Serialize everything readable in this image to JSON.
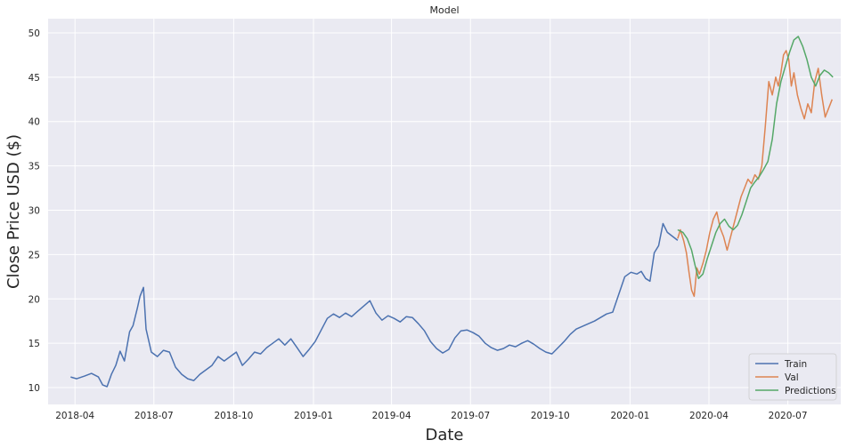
{
  "chart_data": {
    "type": "line",
    "title": "Model",
    "xlabel": "Date",
    "ylabel": "Close Price USD ($)",
    "xlim": [
      "2018-03-01",
      "2020-08-31"
    ],
    "ylim": [
      8.1,
      51.6
    ],
    "yticks": [
      10,
      15,
      20,
      25,
      30,
      35,
      40,
      45,
      50
    ],
    "xticks": [
      {
        "date": "2018-04-01",
        "label": "2018-04"
      },
      {
        "date": "2018-07-01",
        "label": "2018-07"
      },
      {
        "date": "2018-10-01",
        "label": "2018-10"
      },
      {
        "date": "2019-01-01",
        "label": "2019-01"
      },
      {
        "date": "2019-04-01",
        "label": "2019-04"
      },
      {
        "date": "2019-07-01",
        "label": "2019-07"
      },
      {
        "date": "2019-10-01",
        "label": "2019-10"
      },
      {
        "date": "2020-01-01",
        "label": "2020-01"
      },
      {
        "date": "2020-04-01",
        "label": "2020-04"
      },
      {
        "date": "2020-07-01",
        "label": "2020-07"
      }
    ],
    "grid": true,
    "background": "#EAEAF2",
    "legend_position": "bottom-right",
    "series": [
      {
        "name": "Train",
        "color": "#4C72B0",
        "x": [
          "2018-03-27",
          "2018-04-03",
          "2018-04-12",
          "2018-04-20",
          "2018-04-28",
          "2018-05-03",
          "2018-05-08",
          "2018-05-13",
          "2018-05-18",
          "2018-05-23",
          "2018-05-28",
          "2018-06-03",
          "2018-06-07",
          "2018-06-12",
          "2018-06-15",
          "2018-06-19",
          "2018-06-22",
          "2018-06-28",
          "2018-07-05",
          "2018-07-12",
          "2018-07-19",
          "2018-07-26",
          "2018-08-02",
          "2018-08-09",
          "2018-08-16",
          "2018-08-23",
          "2018-08-30",
          "2018-09-06",
          "2018-09-13",
          "2018-09-20",
          "2018-09-27",
          "2018-10-04",
          "2018-10-11",
          "2018-10-18",
          "2018-10-25",
          "2018-11-01",
          "2018-11-08",
          "2018-11-15",
          "2018-11-22",
          "2018-11-29",
          "2018-12-06",
          "2018-12-13",
          "2018-12-20",
          "2018-12-27",
          "2019-01-03",
          "2019-01-10",
          "2019-01-17",
          "2019-01-24",
          "2019-01-31",
          "2019-02-07",
          "2019-02-14",
          "2019-02-21",
          "2019-02-28",
          "2019-03-07",
          "2019-03-14",
          "2019-03-21",
          "2019-03-28",
          "2019-04-04",
          "2019-04-11",
          "2019-04-18",
          "2019-04-25",
          "2019-05-02",
          "2019-05-09",
          "2019-05-16",
          "2019-05-23",
          "2019-05-30",
          "2019-06-06",
          "2019-06-13",
          "2019-06-20",
          "2019-06-27",
          "2019-07-04",
          "2019-07-11",
          "2019-07-18",
          "2019-07-25",
          "2019-08-01",
          "2019-08-08",
          "2019-08-15",
          "2019-08-22",
          "2019-08-29",
          "2019-09-05",
          "2019-09-12",
          "2019-09-19",
          "2019-09-26",
          "2019-10-03",
          "2019-10-10",
          "2019-10-17",
          "2019-10-24",
          "2019-10-31",
          "2019-11-07",
          "2019-11-14",
          "2019-11-21",
          "2019-11-28",
          "2019-12-05",
          "2019-12-12",
          "2019-12-19",
          "2019-12-26",
          "2020-01-02",
          "2020-01-09",
          "2020-01-14",
          "2020-01-19",
          "2020-01-24",
          "2020-01-29",
          "2020-02-03",
          "2020-02-08",
          "2020-02-13",
          "2020-02-17",
          "2020-02-21",
          "2020-02-25"
        ],
        "y": [
          11.2,
          11.0,
          11.3,
          11.6,
          11.2,
          10.3,
          10.1,
          11.5,
          12.5,
          14.1,
          13.0,
          16.3,
          17.0,
          19.0,
          20.3,
          21.3,
          16.6,
          14.0,
          13.5,
          14.2,
          14.0,
          12.3,
          11.5,
          11.0,
          10.8,
          11.5,
          12.0,
          12.5,
          13.5,
          13.0,
          13.5,
          14.0,
          12.5,
          13.2,
          14.0,
          13.8,
          14.5,
          15.0,
          15.5,
          14.8,
          15.5,
          14.5,
          13.5,
          14.3,
          15.2,
          16.5,
          17.8,
          18.3,
          17.9,
          18.4,
          18.0,
          18.6,
          19.2,
          19.8,
          18.4,
          17.6,
          18.1,
          17.8,
          17.4,
          18.0,
          17.9,
          17.2,
          16.4,
          15.2,
          14.4,
          13.9,
          14.3,
          15.6,
          16.4,
          16.5,
          16.2,
          15.8,
          15.0,
          14.5,
          14.2,
          14.4,
          14.8,
          14.6,
          15.0,
          15.3,
          14.9,
          14.4,
          14.0,
          13.8,
          14.5,
          15.2,
          16.0,
          16.6,
          16.9,
          17.2,
          17.5,
          17.9,
          18.3,
          18.5,
          20.5,
          22.5,
          23.0,
          22.8,
          23.1,
          22.3,
          22.0,
          25.2,
          26.0,
          28.5,
          27.5,
          27.2,
          26.9,
          26.6
        ]
      },
      {
        "name": "Val",
        "color": "#DD8452",
        "x": [
          "2020-02-25",
          "2020-02-28",
          "2020-03-03",
          "2020-03-06",
          "2020-03-09",
          "2020-03-12",
          "2020-03-15",
          "2020-03-18",
          "2020-03-21",
          "2020-03-25",
          "2020-03-29",
          "2020-04-02",
          "2020-04-06",
          "2020-04-10",
          "2020-04-14",
          "2020-04-18",
          "2020-04-22",
          "2020-04-26",
          "2020-04-30",
          "2020-05-04",
          "2020-05-08",
          "2020-05-12",
          "2020-05-16",
          "2020-05-20",
          "2020-05-24",
          "2020-05-28",
          "2020-06-01",
          "2020-06-05",
          "2020-06-09",
          "2020-06-13",
          "2020-06-17",
          "2020-06-20",
          "2020-06-23",
          "2020-06-26",
          "2020-06-29",
          "2020-07-02",
          "2020-07-05",
          "2020-07-08",
          "2020-07-12",
          "2020-07-16",
          "2020-07-20",
          "2020-07-24",
          "2020-07-28",
          "2020-08-01",
          "2020-08-05",
          "2020-08-09",
          "2020-08-13",
          "2020-08-17",
          "2020-08-21"
        ],
        "y": [
          26.8,
          27.8,
          26.5,
          25.2,
          23.0,
          21.0,
          20.3,
          23.5,
          22.8,
          24.0,
          25.5,
          27.5,
          29.0,
          29.8,
          28.0,
          27.0,
          25.5,
          27.0,
          28.5,
          30.0,
          31.5,
          32.5,
          33.5,
          33.0,
          34.0,
          33.5,
          35.0,
          39.5,
          44.5,
          43.0,
          45.0,
          44.0,
          45.5,
          47.5,
          48.0,
          47.0,
          44.0,
          45.5,
          43.0,
          41.5,
          40.3,
          42.0,
          41.0,
          44.5,
          46.0,
          43.0,
          40.5,
          41.5,
          42.5
        ]
      },
      {
        "name": "Predictions",
        "color": "#55A868",
        "x": [
          "2020-02-25",
          "2020-03-02",
          "2020-03-07",
          "2020-03-12",
          "2020-03-16",
          "2020-03-20",
          "2020-03-25",
          "2020-03-30",
          "2020-04-04",
          "2020-04-09",
          "2020-04-14",
          "2020-04-19",
          "2020-04-24",
          "2020-04-29",
          "2020-05-04",
          "2020-05-09",
          "2020-05-14",
          "2020-05-19",
          "2020-05-24",
          "2020-05-29",
          "2020-06-03",
          "2020-06-08",
          "2020-06-13",
          "2020-06-18",
          "2020-06-23",
          "2020-06-28",
          "2020-07-03",
          "2020-07-08",
          "2020-07-13",
          "2020-07-18",
          "2020-07-23",
          "2020-07-28",
          "2020-08-02",
          "2020-08-07",
          "2020-08-12",
          "2020-08-17",
          "2020-08-22"
        ],
        "y": [
          27.8,
          27.5,
          26.8,
          25.5,
          23.8,
          22.3,
          22.8,
          24.5,
          26.0,
          27.5,
          28.5,
          29.0,
          28.2,
          27.8,
          28.3,
          29.5,
          31.0,
          32.5,
          33.2,
          33.8,
          34.6,
          35.5,
          38.0,
          42.0,
          44.5,
          46.2,
          47.8,
          49.2,
          49.6,
          48.5,
          47.0,
          45.0,
          44.0,
          45.2,
          45.8,
          45.5,
          45.0
        ]
      }
    ]
  }
}
